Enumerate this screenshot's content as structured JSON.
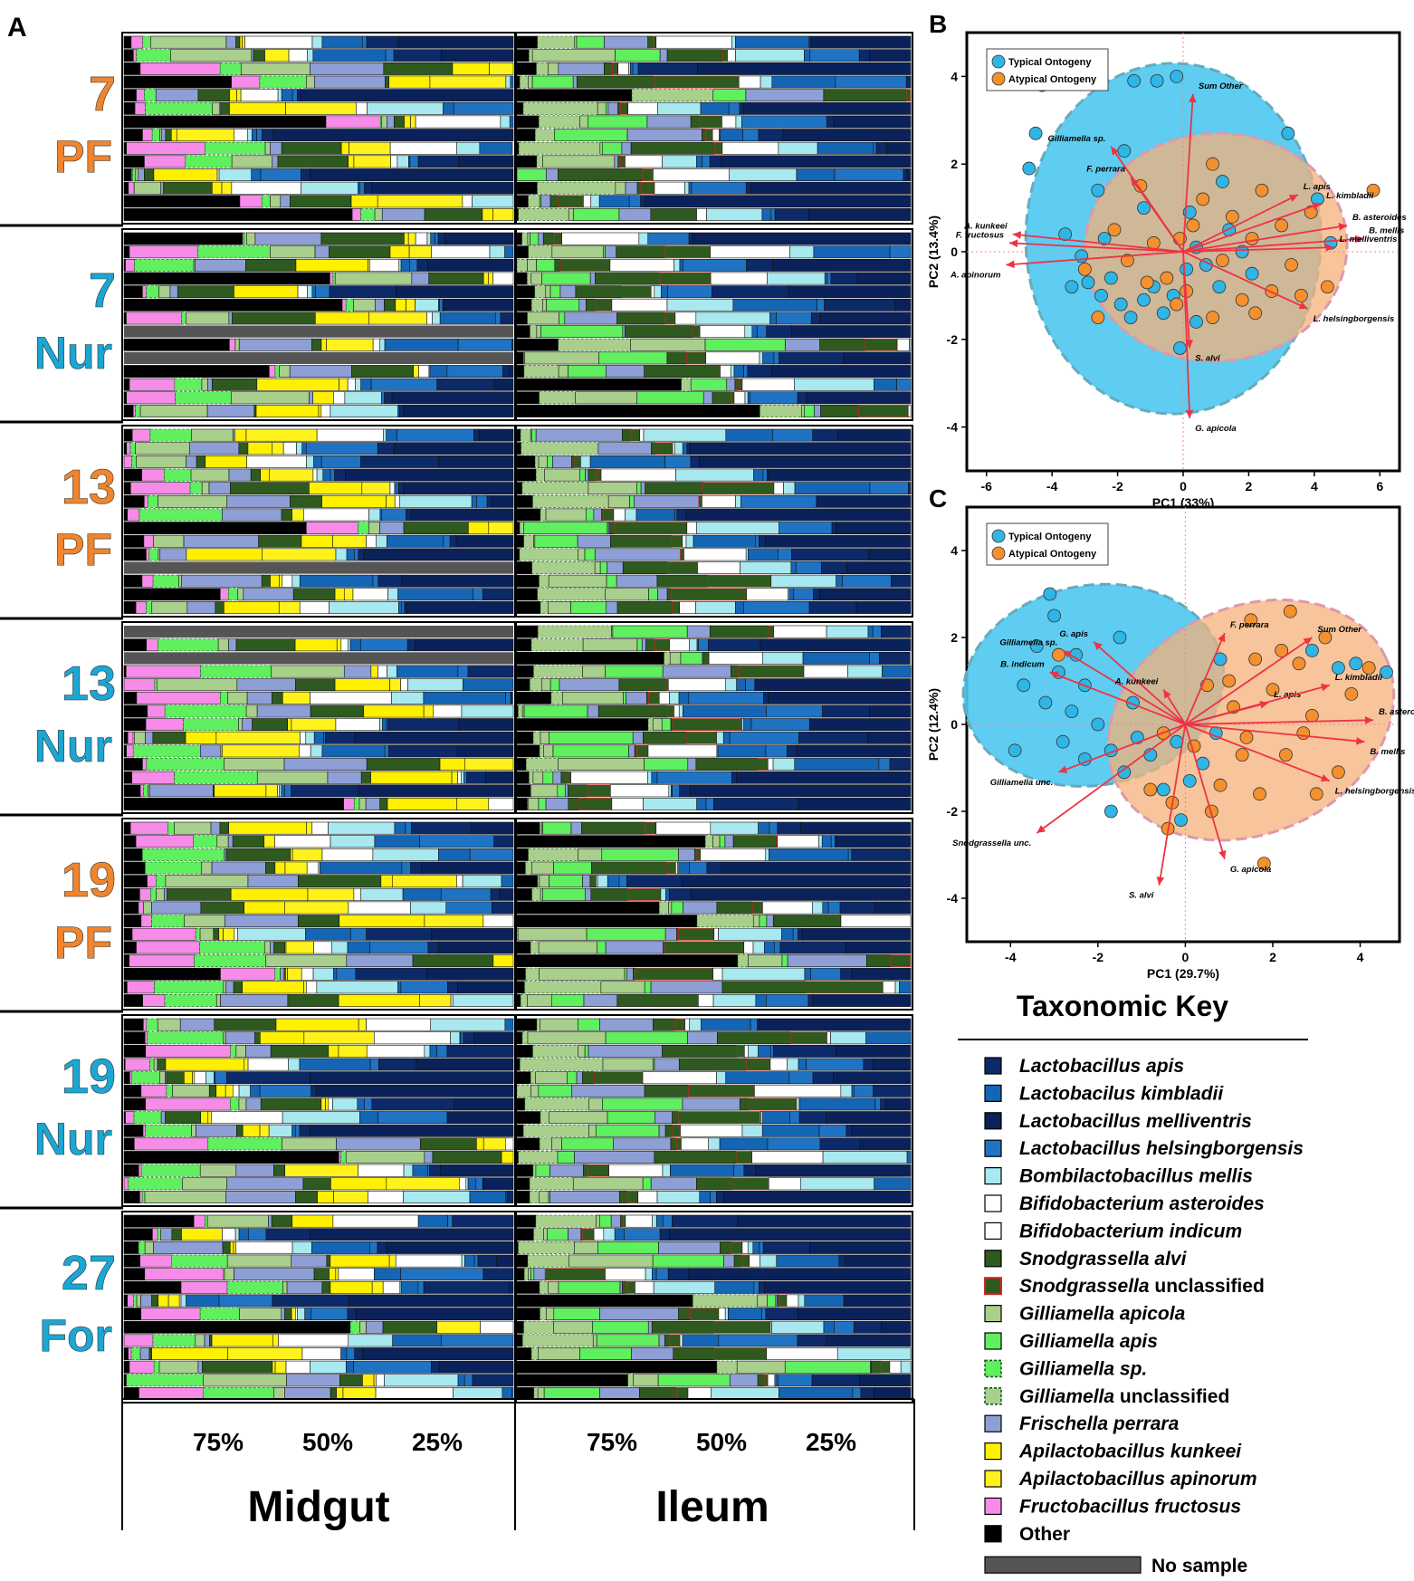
{
  "panels": {
    "A": "A",
    "B": "B",
    "C": "C"
  },
  "colors": {
    "l_apis": "#0c2a68",
    "l_kimbladii": "#1565b5",
    "l_melliventris": "#0a2259",
    "l_helsingborgensis": "#1f73c2",
    "b_mellis": "#a8e8ef",
    "b_asteroides": "#ffffff",
    "b_indicum": "#fdfdfd",
    "s_alvi": "#2f5a1f",
    "s_unclassified": "#2f5a1f",
    "g_apicola": "#a9cf8c",
    "g_apis": "#5fef5f",
    "g_sp": "#5fef5f",
    "g_unclassified": "#a9cf8c",
    "f_perrara": "#8e9fd6",
    "a_kunkeei": "#fff000",
    "a_apinorum": "#fff21a",
    "f_fructosus": "#f68be8",
    "other": "#000000",
    "no_sample": "#555555",
    "pf_label": "#f0852d",
    "nur_label": "#1ba6d3",
    "typical": "#2fb6e6",
    "atypical": "#f4902e",
    "typical_ellipse": "#4cc8f0",
    "atypical_ellipse": "#f4b07a",
    "arrow": "#ee3344"
  },
  "groups": [
    {
      "num": "7",
      "type": "PF"
    },
    {
      "num": "7",
      "type": "Nur"
    },
    {
      "num": "13",
      "type": "PF"
    },
    {
      "num": "13",
      "type": "Nur"
    },
    {
      "num": "19",
      "type": "PF"
    },
    {
      "num": "19",
      "type": "Nur"
    },
    {
      "num": "27",
      "type": "For"
    }
  ],
  "stacked_axis": {
    "ticks": [
      "75%",
      "50%",
      "25%"
    ],
    "midgut_label": "Midgut",
    "ileum_label": "Ileum"
  },
  "chart_data": [
    {
      "type": "bar",
      "title": "Midgut",
      "orientation": "horizontal stacked relative abundance",
      "xticks": [
        "75%",
        "50%",
        "25%"
      ],
      "rows_per_group": 14
    },
    {
      "type": "bar",
      "title": "Ileum",
      "orientation": "horizontal stacked relative abundance",
      "xticks": [
        "75%",
        "50%",
        "25%"
      ],
      "rows_per_group": 14
    },
    {
      "type": "scatter",
      "panel": "B",
      "xlabel": "PC1 (33%)",
      "ylabel": "PC2 (13.4%)",
      "xlim": [
        -6.6,
        6.6
      ],
      "ylim": [
        -5,
        5
      ],
      "xticks": [
        "-6",
        "-4",
        "-2",
        "0",
        "2",
        "4",
        "6"
      ],
      "yticks": [
        "4",
        "2",
        "0",
        "-2",
        "-4"
      ],
      "legend": [
        "Typical Ontogeny",
        "Atypical Ontogeny"
      ],
      "typical": [
        [
          -4.3,
          3.8
        ],
        [
          -4.5,
          2.7
        ],
        [
          -4.7,
          1.9
        ],
        [
          -3.6,
          0.4
        ],
        [
          -3.1,
          -0.1
        ],
        [
          -2.9,
          -0.7
        ],
        [
          -2.5,
          -1.0
        ],
        [
          -2.2,
          -0.6
        ],
        [
          -1.9,
          -1.2
        ],
        [
          -1.6,
          -1.5
        ],
        [
          -1.2,
          -1.1
        ],
        [
          -0.9,
          -0.8
        ],
        [
          -0.6,
          -1.4
        ],
        [
          -0.3,
          -1.0
        ],
        [
          0.1,
          -0.4
        ],
        [
          0.4,
          0.1
        ],
        [
          0.7,
          -0.3
        ],
        [
          1.1,
          -0.8
        ],
        [
          1.4,
          0.5
        ],
        [
          1.8,
          0.0
        ],
        [
          2.1,
          -0.5
        ],
        [
          -1.5,
          3.9
        ],
        [
          -0.8,
          3.9
        ],
        [
          -0.2,
          4.0
        ],
        [
          3.2,
          2.7
        ],
        [
          4.1,
          1.2
        ],
        [
          4.5,
          0.2
        ],
        [
          -2.6,
          1.4
        ],
        [
          -1.2,
          1.0
        ],
        [
          0.4,
          -1.6
        ],
        [
          -0.1,
          -2.2
        ],
        [
          -3.4,
          -0.8
        ],
        [
          -2.4,
          0.3
        ],
        [
          0.2,
          0.9
        ],
        [
          1.2,
          1.6
        ],
        [
          -1.8,
          2.3
        ]
      ],
      "atypical": [
        [
          -3.0,
          -0.4
        ],
        [
          -2.6,
          -1.5
        ],
        [
          -2.1,
          0.5
        ],
        [
          -1.7,
          -0.2
        ],
        [
          -1.3,
          1.5
        ],
        [
          -0.9,
          0.2
        ],
        [
          -0.5,
          -0.6
        ],
        [
          -0.2,
          -1.2
        ],
        [
          0.3,
          0.6
        ],
        [
          0.6,
          1.2
        ],
        [
          0.9,
          -1.5
        ],
        [
          1.2,
          -0.2
        ],
        [
          1.5,
          0.8
        ],
        [
          1.8,
          -1.1
        ],
        [
          2.1,
          0.3
        ],
        [
          2.4,
          1.4
        ],
        [
          2.7,
          -0.9
        ],
        [
          3.0,
          0.6
        ],
        [
          3.3,
          -0.3
        ],
        [
          3.6,
          -1.0
        ],
        [
          3.9,
          0.9
        ],
        [
          4.4,
          -0.8
        ],
        [
          5.8,
          1.4
        ],
        [
          -0.1,
          0.3
        ],
        [
          0.9,
          2.0
        ],
        [
          2.2,
          -1.4
        ],
        [
          -1.1,
          -0.7
        ],
        [
          0.1,
          -0.9
        ]
      ],
      "vectors": [
        {
          "label": "Sum Other",
          "x": 0.3,
          "y": 3.6
        },
        {
          "label": "Gilliamella sp.",
          "x": -2.2,
          "y": 2.4
        },
        {
          "label": "F. perrara",
          "x": -1.6,
          "y": 1.7
        },
        {
          "label": "A. kunkeei",
          "x": -5.2,
          "y": 0.4
        },
        {
          "label": "F. fructosus",
          "x": -5.3,
          "y": 0.2
        },
        {
          "label": "A. apinorum",
          "x": -5.4,
          "y": -0.3
        },
        {
          "label": "L. apis",
          "x": 3.5,
          "y": 1.3
        },
        {
          "label": "L. kimbladii",
          "x": 4.2,
          "y": 1.1
        },
        {
          "label": "B. asteroides",
          "x": 5.0,
          "y": 0.6
        },
        {
          "label": "B. mellis",
          "x": 5.5,
          "y": 0.3
        },
        {
          "label": "L. melliventris",
          "x": 4.6,
          "y": 0.1
        },
        {
          "label": "L. helsingborgensis",
          "x": 3.8,
          "y": -1.3
        },
        {
          "label": "S. alvi",
          "x": 0.2,
          "y": -2.2
        },
        {
          "label": "G. apicola",
          "x": 0.2,
          "y": -3.8
        }
      ]
    },
    {
      "type": "scatter",
      "panel": "C",
      "xlabel": "PC1 (29.7%)",
      "ylabel": "PC2 (12.4%)",
      "xlim": [
        -5.0,
        4.9
      ],
      "ylim": [
        -5,
        5
      ],
      "xticks": [
        "-4",
        "-2",
        "0",
        "2",
        "4"
      ],
      "yticks": [
        "4",
        "2",
        "0",
        "-2",
        "-4"
      ],
      "legend": [
        "Typical Ontogeny",
        "Atypical Ontogeny"
      ],
      "typical": [
        [
          -3.1,
          3.0
        ],
        [
          -3.0,
          2.5
        ],
        [
          -3.4,
          1.8
        ],
        [
          -3.7,
          0.9
        ],
        [
          -3.2,
          0.5
        ],
        [
          -2.9,
          1.2
        ],
        [
          -2.6,
          0.3
        ],
        [
          -2.3,
          0.9
        ],
        [
          -2.0,
          0.0
        ],
        [
          -1.7,
          -0.6
        ],
        [
          -1.4,
          -1.1
        ],
        [
          -1.1,
          -0.3
        ],
        [
          -0.8,
          -0.7
        ],
        [
          -0.5,
          -1.5
        ],
        [
          -0.2,
          -0.4
        ],
        [
          0.1,
          -1.3
        ],
        [
          0.4,
          -0.9
        ],
        [
          0.7,
          -0.2
        ],
        [
          -3.9,
          -0.6
        ],
        [
          -2.5,
          1.6
        ],
        [
          -1.5,
          2.0
        ],
        [
          -2.8,
          -0.4
        ],
        [
          -1.2,
          0.5
        ],
        [
          -0.1,
          -2.2
        ],
        [
          3.5,
          1.3
        ],
        [
          4.6,
          1.2
        ],
        [
          3.9,
          1.4
        ],
        [
          -1.7,
          -2.0
        ],
        [
          0.8,
          1.5
        ],
        [
          2.9,
          1.7
        ],
        [
          -2.3,
          -0.8
        ]
      ],
      "atypical": [
        [
          -2.9,
          1.6
        ],
        [
          -0.5,
          -0.2
        ],
        [
          -0.3,
          -1.8
        ],
        [
          0.2,
          -0.5
        ],
        [
          0.5,
          0.9
        ],
        [
          0.8,
          -1.4
        ],
        [
          1.1,
          0.4
        ],
        [
          1.4,
          -0.3
        ],
        [
          1.7,
          -1.6
        ],
        [
          2.0,
          0.8
        ],
        [
          2.3,
          -0.7
        ],
        [
          2.6,
          1.4
        ],
        [
          2.9,
          0.2
        ],
        [
          3.2,
          2.0
        ],
        [
          3.5,
          -1.1
        ],
        [
          3.8,
          0.7
        ],
        [
          4.2,
          1.3
        ],
        [
          1.5,
          2.4
        ],
        [
          2.4,
          2.6
        ],
        [
          1.3,
          -0.7
        ],
        [
          1.8,
          -3.2
        ],
        [
          0.6,
          -2.0
        ],
        [
          -0.8,
          -1.5
        ],
        [
          2.2,
          1.7
        ],
        [
          1.0,
          1.0
        ],
        [
          2.7,
          -0.2
        ],
        [
          3.0,
          -1.6
        ],
        [
          1.6,
          1.5
        ],
        [
          -0.4,
          -2.4
        ]
      ],
      "vectors": [
        {
          "label": "G. apis",
          "x": -2.1,
          "y": 1.9
        },
        {
          "label": "Gilliamella sp.",
          "x": -2.8,
          "y": 1.7
        },
        {
          "label": "B. indicum",
          "x": -3.1,
          "y": 1.2
        },
        {
          "label": "F. perrara",
          "x": 0.9,
          "y": 2.1
        },
        {
          "label": "A. kunkeei",
          "x": -0.5,
          "y": 0.8
        },
        {
          "label": "L. apis",
          "x": 1.9,
          "y": 0.5
        },
        {
          "label": "Sum Other",
          "x": 2.9,
          "y": 2.0
        },
        {
          "label": "L. kimbladii",
          "x": 3.3,
          "y": 0.9
        },
        {
          "label": "B. asteroides",
          "x": 4.3,
          "y": 0.1
        },
        {
          "label": "B. mellis",
          "x": 4.1,
          "y": -0.4
        },
        {
          "label": "L. helsingborgensis",
          "x": 3.3,
          "y": -1.3
        },
        {
          "label": "Gilliamella unc.",
          "x": -2.9,
          "y": -1.1
        },
        {
          "label": "Snodgrassella unc.",
          "x": -3.4,
          "y": -2.5
        },
        {
          "label": "G. apicola",
          "x": 0.9,
          "y": -3.1
        },
        {
          "label": "S. alvi",
          "x": -0.6,
          "y": -3.7
        }
      ]
    }
  ],
  "key": {
    "title": "Taxonomic Key",
    "items": [
      {
        "ital": "Lactobacillus apis",
        "rest": "",
        "color": "#0c2a68",
        "style": "solid"
      },
      {
        "ital": "Lactobacilus kimbladii",
        "rest": "",
        "color": "#1565b5",
        "style": "solid"
      },
      {
        "ital": "Lactobacillus melliventris",
        "rest": "",
        "color": "#0a2259",
        "style": "solid"
      },
      {
        "ital": "Lactobacillus helsingborgensis",
        "rest": "",
        "color": "#1f73c2",
        "style": "solid"
      },
      {
        "ital": "Bombilactobacillus mellis",
        "rest": "",
        "color": "#a8e8ef",
        "style": "solid"
      },
      {
        "ital": "Bifidobacterium asteroides",
        "rest": "",
        "color": "#ffffff",
        "style": "solid"
      },
      {
        "ital": "Bifidobacterium indicum",
        "rest": "",
        "color": "#fdfdfd",
        "style": "solid"
      },
      {
        "ital": "Snodgrassella alvi",
        "rest": "",
        "color": "#2f5a1f",
        "style": "solid"
      },
      {
        "ital": "Snodgrassella",
        "rest": " unclassified",
        "color": "#2f5a1f",
        "style": "red"
      },
      {
        "ital": "Gilliamella apicola",
        "rest": "",
        "color": "#a9cf8c",
        "style": "solid"
      },
      {
        "ital": "Gilliamella apis",
        "rest": "",
        "color": "#5fef5f",
        "style": "solid"
      },
      {
        "ital": "Gilliamella sp.",
        "rest": "",
        "color": "#5fef5f",
        "style": "dashed"
      },
      {
        "ital": "Gilliamella",
        "rest": " unclassified",
        "color": "#a9cf8c",
        "style": "dashed"
      },
      {
        "ital": "Frischella perrara",
        "rest": "",
        "color": "#8e9fd6",
        "style": "solid"
      },
      {
        "ital": "Apilactobacillus kunkeei",
        "rest": "",
        "color": "#fff000",
        "style": "solid"
      },
      {
        "ital": "Apilactobacillus apinorum",
        "rest": "",
        "color": "#fff21a",
        "style": "solid"
      },
      {
        "ital": "Fructobacillus fructosus",
        "rest": "",
        "color": "#f68be8",
        "style": "solid"
      },
      {
        "ital": "",
        "rest": "Other",
        "color": "#000000",
        "style": "solid"
      }
    ],
    "no_sample": "No sample"
  }
}
